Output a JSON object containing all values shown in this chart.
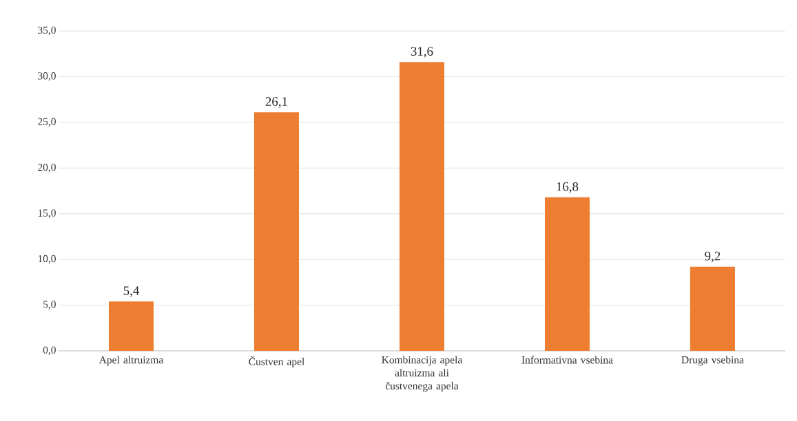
{
  "chart_data": {
    "type": "bar",
    "categories": [
      "Apel altruizma",
      "Čustven apel",
      "Kombinacija apela altruizma ali čustvenega apela",
      "Informativna vsebina",
      "Druga vsebina"
    ],
    "values": [
      5.4,
      26.1,
      31.6,
      16.8,
      9.2
    ],
    "value_labels": [
      "5,4",
      "26,1",
      "31,6",
      "16,8",
      "9,2"
    ],
    "color": "#ed7d31",
    "ylim": [
      0,
      35
    ],
    "yticks": [
      {
        "value": 0,
        "label": "0,0"
      },
      {
        "value": 5,
        "label": "5,0"
      },
      {
        "value": 10,
        "label": "10,0"
      },
      {
        "value": 15,
        "label": "15,0"
      },
      {
        "value": 20,
        "label": "20,0"
      },
      {
        "value": 25,
        "label": "25,0"
      },
      {
        "value": 30,
        "label": "30,0"
      },
      {
        "value": 35,
        "label": "35,0"
      }
    ],
    "grid": "y"
  }
}
